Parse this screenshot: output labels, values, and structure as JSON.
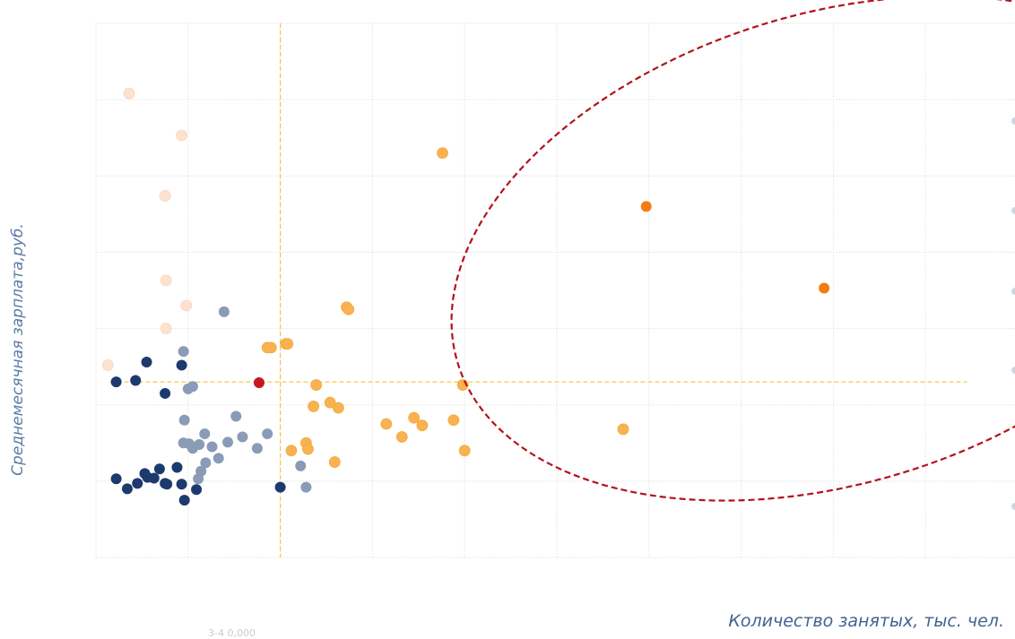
{
  "chart_data": {
    "type": "scatter",
    "title": "",
    "xlabel": "Количество занятых, тыс. чел.",
    "ylabel": "Среднемесячная зарплата,руб.",
    "xlim": [
      0,
      1000
    ],
    "ylim": [
      0,
      70
    ],
    "grid": true,
    "reference_lines": {
      "x": 200,
      "y": 23
    },
    "highlight_ellipse": {
      "center_x": 800,
      "center_y": 40.5,
      "color": "#b3121a"
    },
    "colors": {
      "navy": "#1c3a6e",
      "slate": "#8a9bb7",
      "peach": "#fde2cf",
      "light-orange": "#f8b252",
      "orange": "#f57c0f",
      "red": "#c8161d",
      "reference-line": "#f4c542",
      "grid": "#e3e3e3"
    },
    "series": [
      {
        "key": "navy",
        "points": [
          [
            22,
            23
          ],
          [
            43,
            23.2
          ],
          [
            55,
            25.6
          ],
          [
            93,
            25.2
          ],
          [
            75,
            21.5
          ],
          [
            22,
            10.3
          ],
          [
            34,
            9
          ],
          [
            45,
            9.7
          ],
          [
            53,
            11
          ],
          [
            56,
            10.5
          ],
          [
            63,
            10.4
          ],
          [
            69,
            11.6
          ],
          [
            75,
            9.7
          ],
          [
            77,
            9.6
          ],
          [
            88,
            11.8
          ],
          [
            93,
            9.6
          ],
          [
            96,
            7.5
          ],
          [
            109,
            8.9
          ],
          [
            200,
            9.2
          ]
        ]
      },
      {
        "key": "slate",
        "points": [
          [
            139,
            32.2
          ],
          [
            95,
            27
          ],
          [
            100,
            22.1
          ],
          [
            105,
            22.4
          ],
          [
            96,
            18
          ],
          [
            95,
            15
          ],
          [
            101,
            14.9
          ],
          [
            105,
            14.3
          ],
          [
            112,
            14.8
          ],
          [
            118,
            16.2
          ],
          [
            126,
            14.5
          ],
          [
            133,
            13
          ],
          [
            119,
            12.4
          ],
          [
            114,
            11.3
          ],
          [
            111,
            10.3
          ],
          [
            143,
            15.1
          ],
          [
            152,
            18.5
          ],
          [
            159,
            15.8
          ],
          [
            175,
            14.3
          ],
          [
            186,
            16.2
          ],
          [
            222,
            12
          ],
          [
            228,
            9.2
          ]
        ]
      },
      {
        "key": "peach",
        "points": [
          [
            36,
            60.8
          ],
          [
            93,
            55.3
          ],
          [
            75,
            47.4
          ],
          [
            76,
            36.3
          ],
          [
            98,
            33
          ],
          [
            76,
            30
          ],
          [
            13,
            25.2
          ]
        ]
      },
      {
        "key": "light-orange",
        "points": [
          [
            190,
            27.5
          ],
          [
            186,
            27.5
          ],
          [
            206,
            28
          ],
          [
            208,
            28
          ],
          [
            272,
            32.8
          ],
          [
            274,
            32.5
          ],
          [
            376,
            53
          ],
          [
            239,
            22.6
          ],
          [
            254,
            20.3
          ],
          [
            236,
            19.8
          ],
          [
            263,
            19.6
          ],
          [
            315,
            17.5
          ],
          [
            332,
            15.8
          ],
          [
            345,
            18.3
          ],
          [
            354,
            17.3
          ],
          [
            388,
            18
          ],
          [
            398,
            22.6
          ],
          [
            400,
            14
          ],
          [
            572,
            16.8
          ],
          [
            212,
            14
          ],
          [
            228,
            15
          ],
          [
            230,
            14.2
          ],
          [
            259,
            12.5
          ]
        ]
      },
      {
        "key": "orange",
        "points": [
          [
            597,
            46
          ],
          [
            790,
            35.3
          ]
        ]
      },
      {
        "key": "red",
        "points": [
          [
            177,
            22.9
          ]
        ]
      }
    ]
  },
  "bottom_fragment": "3-4  0,000"
}
